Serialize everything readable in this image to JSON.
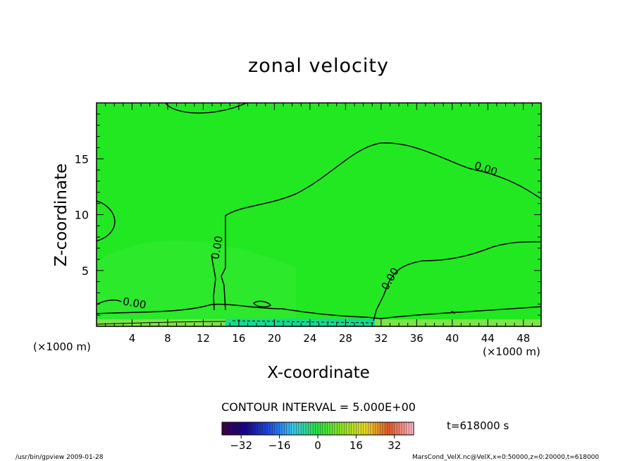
{
  "chart_data": {
    "type": "heatmap",
    "title": "zonal velocity",
    "xlabel": "X-coordinate",
    "ylabel": "Z-coordinate",
    "xunit": "(×1000 m)",
    "yunit": "(×1000 m)",
    "xlim": [
      0,
      50
    ],
    "ylim": [
      0,
      20
    ],
    "xticks": [
      4,
      8,
      12,
      16,
      20,
      24,
      28,
      32,
      36,
      40,
      44,
      48
    ],
    "yticks": [
      5,
      10,
      15
    ],
    "contour_interval": "CONTOUR INTERVAL = 5.000E+00",
    "contour_labels": [
      "0.00",
      "0.00",
      "0.00",
      "0.00"
    ],
    "colorbar": {
      "range": [
        -40,
        40
      ],
      "ticks": [
        -32,
        -16,
        0,
        16,
        32
      ]
    },
    "time_label": "t=618000 s",
    "field_color": "#22e822"
  },
  "footer": {
    "left": "/usr/bin/gpview   2009-01-28",
    "right": "MarsCond_VelX.nc@VelX,x=0:50000,z=0:20000,t=618000"
  }
}
